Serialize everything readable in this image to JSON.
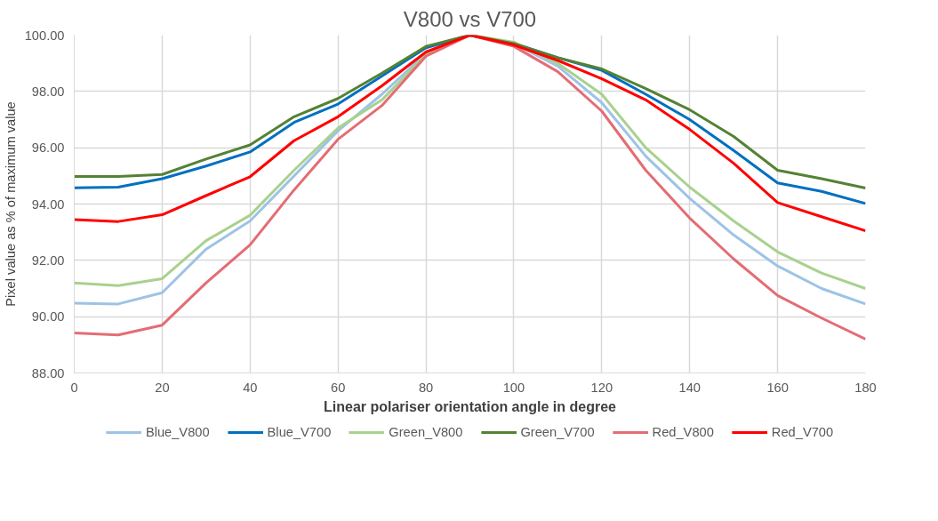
{
  "chart_data": {
    "type": "line",
    "title": "V800 vs V700",
    "xlabel": "Linear polariser orientation angle in degree",
    "ylabel": "Pixel value as % of maximum value",
    "x": [
      0,
      10,
      20,
      30,
      40,
      50,
      60,
      70,
      80,
      90,
      100,
      110,
      120,
      130,
      140,
      150,
      160,
      170,
      180
    ],
    "xlim": [
      0,
      180
    ],
    "xticks": [
      0,
      20,
      40,
      60,
      80,
      100,
      120,
      140,
      160,
      180
    ],
    "ylim": [
      88,
      100
    ],
    "yticks": [
      {
        "value": 88,
        "label": "88.00"
      },
      {
        "value": 90,
        "label": "90.00"
      },
      {
        "value": 92,
        "label": "92.00"
      },
      {
        "value": 94,
        "label": "94.00"
      },
      {
        "value": 96,
        "label": "96.00"
      },
      {
        "value": 98,
        "label": "98.00"
      },
      {
        "value": 100,
        "label": "100.00"
      }
    ],
    "grid": true,
    "legend": "bottom",
    "marker": "none",
    "line_style": "solid",
    "series": [
      {
        "name": "Blue_V800",
        "color": "#9dc3e6",
        "values": [
          90.48,
          90.45,
          90.85,
          92.4,
          93.4,
          95.0,
          96.6,
          97.9,
          99.35,
          100,
          99.7,
          98.9,
          97.6,
          95.7,
          94.2,
          92.9,
          91.8,
          91.0,
          90.45
        ]
      },
      {
        "name": "Blue_V700",
        "color": "#0070c0",
        "values": [
          94.58,
          94.6,
          94.9,
          95.35,
          95.85,
          96.9,
          97.55,
          98.55,
          99.55,
          100,
          99.7,
          99.2,
          98.75,
          97.9,
          97.0,
          95.9,
          94.75,
          94.45,
          94.02
        ]
      },
      {
        "name": "Green_V800",
        "color": "#a9d18e",
        "values": [
          91.2,
          91.1,
          91.35,
          92.7,
          93.6,
          95.2,
          96.7,
          97.7,
          99.3,
          100,
          99.75,
          99.0,
          97.9,
          96.0,
          94.6,
          93.4,
          92.3,
          91.55,
          91.0
        ]
      },
      {
        "name": "Green_V700",
        "color": "#548235",
        "values": [
          94.98,
          94.98,
          95.05,
          95.6,
          96.1,
          97.1,
          97.75,
          98.65,
          99.6,
          100,
          99.7,
          99.2,
          98.8,
          98.1,
          97.35,
          96.4,
          95.2,
          94.9,
          94.57
        ]
      },
      {
        "name": "Red_V800",
        "color": "#e46c74",
        "values": [
          89.42,
          89.35,
          89.7,
          91.2,
          92.55,
          94.5,
          96.3,
          97.5,
          99.25,
          100,
          99.6,
          98.7,
          97.3,
          95.2,
          93.5,
          92.05,
          90.75,
          89.95,
          89.2
        ]
      },
      {
        "name": "Red_V700",
        "color": "#ff0000",
        "values": [
          93.45,
          93.38,
          93.62,
          94.3,
          94.97,
          96.25,
          97.1,
          98.2,
          99.4,
          100,
          99.65,
          99.1,
          98.45,
          97.7,
          96.65,
          95.45,
          94.05,
          93.55,
          93.05
        ]
      }
    ]
  }
}
